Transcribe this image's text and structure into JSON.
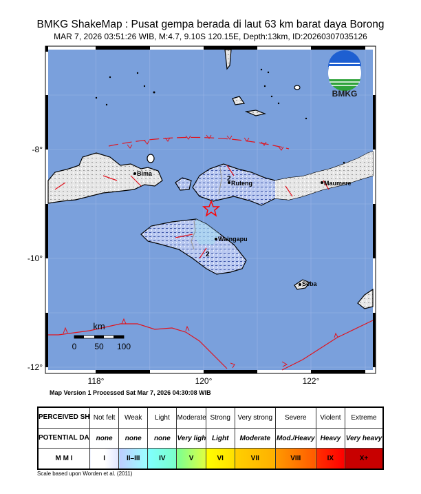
{
  "header": {
    "title": "BMKG ShakeMap : Pusat gempa berada di laut 63 km barat daya Borong",
    "subtitle": "MAR 7, 2026 03:51:26 WIB, M:4.7, 9.10S 120.15E, Depth:13km, ID:20260307035126"
  },
  "map": {
    "logo_text": "BMKG",
    "epicenter": {
      "lat": -9.1,
      "lon": 120.15,
      "icon": "star-icon",
      "color": "#ff0000"
    },
    "lat_labels": [
      "-8°",
      "-10°",
      "-12°"
    ],
    "lon_labels": [
      "118°",
      "120°",
      "122°"
    ],
    "cities": [
      "Bima",
      "Ruteng",
      "Maumere",
      "Waingapu",
      "Seba"
    ],
    "contour_labels": [
      "2",
      "2"
    ],
    "scale_bar": {
      "unit": "km",
      "labels": [
        "0",
        "50",
        "100"
      ]
    },
    "colors": {
      "sea": "#7aa0dc",
      "fault": "#e0141e",
      "land": "#e8e8e8"
    }
  },
  "processed": "Map Version 1 Processed Sat Mar  7, 2026 04:30:08 WIB",
  "legend": {
    "row_headers": [
      "PERCEIVED SHAKING",
      "POTENTIAL DAMAGE",
      "M M I"
    ],
    "columns": [
      {
        "shaking": "Not felt",
        "damage": "none",
        "mmi": "I",
        "color": "#ffffff"
      },
      {
        "shaking": "Weak",
        "damage": "none",
        "mmi": "II–III",
        "color": "#bfccff"
      },
      {
        "shaking": "Light",
        "damage": "none",
        "mmi": "IV",
        "color": "#80ffff"
      },
      {
        "shaking": "Moderate",
        "damage": "Very light",
        "mmi": "V",
        "color": "#7aff93"
      },
      {
        "shaking": "Strong",
        "damage": "Light",
        "mmi": "VI",
        "color": "#ffff00"
      },
      {
        "shaking": "Very strong",
        "damage": "Moderate",
        "mmi": "VII",
        "color": "#ffc800"
      },
      {
        "shaking": "Severe",
        "damage": "Mod./Heavy",
        "mmi": "VIII",
        "color": "#ff9100"
      },
      {
        "shaking": "Violent",
        "damage": "Heavy",
        "mmi": "IX",
        "color": "#ff0000"
      },
      {
        "shaking": "Extreme",
        "damage": "Very heavy",
        "mmi": "X+",
        "color": "#c80000"
      }
    ],
    "note": "Scale based upon Worden et al. (2011)"
  }
}
